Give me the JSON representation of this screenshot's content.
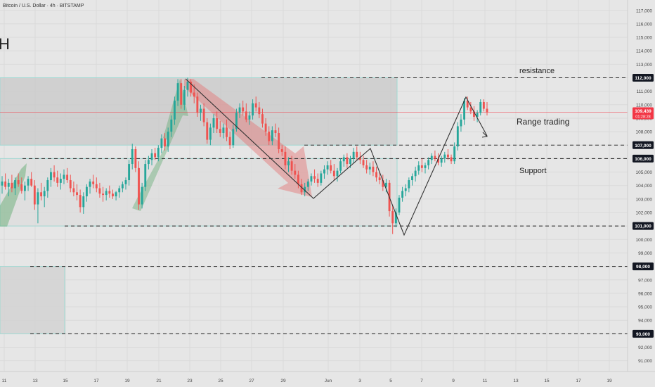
{
  "header": {
    "symbol_line": "Bitcoin / U.S. Dollar · 4h · BITSTAMP",
    "partial_title": "H"
  },
  "chart_data": {
    "type": "candlestick",
    "symbol": "Bitcoin / U.S. Dollar",
    "interval": "4h",
    "exchange": "BITSTAMP",
    "y_axis": {
      "min": 90500,
      "max": 117500,
      "ticks": [
        117000,
        116000,
        115000,
        114000,
        113000,
        112000,
        111000,
        110000,
        109000,
        108000,
        107000,
        106000,
        105000,
        104000,
        103000,
        102000,
        101000,
        100000,
        99000,
        98000,
        97000,
        96000,
        95000,
        94000,
        93000,
        92000,
        91000
      ],
      "tick_labels": [
        "117,000",
        "116,000",
        "115,000",
        "114,000",
        "113,000",
        "112,000",
        "111,000",
        "110,000",
        "109,000",
        "108,000",
        "107,000",
        "106,000",
        "105,000",
        "104,000",
        "103,000",
        "102,000",
        "101,000",
        "100,000",
        "99,000",
        "98,000",
        "97,000",
        "96,000",
        "95,000",
        "94,000",
        "93,000",
        "92,000",
        "91,000"
      ]
    },
    "x_axis": {
      "labels": [
        "11",
        "13",
        "15",
        "17",
        "19",
        "21",
        "23",
        "25",
        "27",
        "29",
        "Jun",
        "3",
        "5",
        "7",
        "9",
        "11",
        "13",
        "15",
        "17",
        "19"
      ]
    },
    "current_price": {
      "label": "109,439",
      "timer": "01:28:28",
      "value": 109439
    },
    "key_levels": [
      {
        "value": 112000,
        "label": "112,000"
      },
      {
        "value": 107000,
        "label": "107,000"
      },
      {
        "value": 106000,
        "label": "106,000"
      },
      {
        "value": 101000,
        "label": "101,000"
      },
      {
        "value": 98000,
        "label": "98,000"
      },
      {
        "value": 93000,
        "label": "93,000"
      }
    ],
    "annotations": [
      {
        "text": "resistance"
      },
      {
        "text": "Range trading"
      },
      {
        "text": "Support"
      }
    ],
    "colors": {
      "up": "#26a69a",
      "down": "#ef5350",
      "price_line": "#f23645",
      "zone_border": "#9fd9d3",
      "arrow_up": "#5aa86b",
      "arrow_down": "#e57373"
    },
    "candles": [
      [
        104000,
        104700,
        103400,
        104300
      ],
      [
        104300,
        104900,
        103700,
        103900
      ],
      [
        103900,
        104500,
        103200,
        104200
      ],
      [
        104200,
        104800,
        103500,
        103800
      ],
      [
        103800,
        104600,
        103300,
        104400
      ],
      [
        104400,
        104900,
        103900,
        104100
      ],
      [
        104100,
        104600,
        103400,
        103600
      ],
      [
        103600,
        104300,
        102900,
        104000
      ],
      [
        104000,
        104700,
        103600,
        104500
      ],
      [
        104500,
        105000,
        103900,
        104000
      ],
      [
        104000,
        104400,
        102200,
        102600
      ],
      [
        102600,
        103800,
        101200,
        103500
      ],
      [
        103500,
        104200,
        102900,
        103200
      ],
      [
        103200,
        103900,
        102400,
        103600
      ],
      [
        103600,
        104600,
        103100,
        104400
      ],
      [
        104400,
        105300,
        103900,
        105000
      ],
      [
        105000,
        105500,
        104300,
        104600
      ],
      [
        104600,
        105100,
        103900,
        104200
      ],
      [
        104200,
        104900,
        103700,
        104500
      ],
      [
        104500,
        105200,
        104100,
        104800
      ],
      [
        104800,
        105300,
        104200,
        104400
      ],
      [
        104400,
        104800,
        103500,
        103800
      ],
      [
        103800,
        104300,
        103200,
        103500
      ],
      [
        103500,
        104100,
        102900,
        103300
      ],
      [
        103300,
        103700,
        102000,
        102400
      ],
      [
        102400,
        103500,
        101900,
        103200
      ],
      [
        103200,
        104100,
        102800,
        103900
      ],
      [
        103900,
        104500,
        103400,
        104300
      ],
      [
        104300,
        104800,
        103800,
        104100
      ],
      [
        104100,
        104600,
        103500,
        103800
      ],
      [
        103800,
        104200,
        103100,
        103400
      ],
      [
        103400,
        103900,
        102800,
        103300
      ],
      [
        103300,
        103800,
        102900,
        103600
      ],
      [
        103600,
        104000,
        103100,
        103400
      ],
      [
        103400,
        103700,
        103000,
        103200
      ],
      [
        103200,
        103600,
        102900,
        103500
      ],
      [
        103500,
        104000,
        103100,
        103800
      ],
      [
        103800,
        104300,
        103500,
        104100
      ],
      [
        104100,
        104600,
        103700,
        104400
      ],
      [
        104400,
        105900,
        104000,
        105600
      ],
      [
        105600,
        107100,
        105200,
        106700
      ],
      [
        106700,
        106900,
        105000,
        105300
      ],
      [
        105300,
        105800,
        102200,
        102600
      ],
      [
        102600,
        104200,
        102300,
        103900
      ],
      [
        103900,
        105900,
        103600,
        105600
      ],
      [
        105600,
        106200,
        105200,
        105900
      ],
      [
        105900,
        106700,
        105500,
        106400
      ],
      [
        106400,
        106800,
        105900,
        106100
      ],
      [
        106100,
        107000,
        105800,
        106800
      ],
      [
        106800,
        107800,
        106400,
        107500
      ],
      [
        107500,
        107900,
        106600,
        106900
      ],
      [
        106900,
        108300,
        106500,
        108000
      ],
      [
        108000,
        109200,
        107600,
        108900
      ],
      [
        108900,
        110600,
        108500,
        110300
      ],
      [
        110300,
        111900,
        109900,
        111600
      ],
      [
        111600,
        111900,
        109700,
        110000
      ],
      [
        110000,
        111400,
        109600,
        111100
      ],
      [
        111100,
        112000,
        110600,
        111700
      ],
      [
        111700,
        111900,
        110600,
        110900
      ],
      [
        110900,
        111500,
        110100,
        110600
      ],
      [
        110600,
        110900,
        109100,
        109400
      ],
      [
        109400,
        110000,
        108800,
        109700
      ],
      [
        109700,
        110100,
        108400,
        108700
      ],
      [
        108700,
        109000,
        107100,
        107400
      ],
      [
        107400,
        108600,
        107000,
        108300
      ],
      [
        108300,
        109300,
        107900,
        109000
      ],
      [
        109000,
        109500,
        107900,
        108200
      ],
      [
        108200,
        108800,
        107600,
        107900
      ],
      [
        107900,
        108600,
        107500,
        108300
      ],
      [
        108300,
        108900,
        107300,
        107600
      ],
      [
        107600,
        108000,
        106700,
        107000
      ],
      [
        107000,
        108500,
        106800,
        108200
      ],
      [
        108200,
        109700,
        108000,
        109400
      ],
      [
        109400,
        110100,
        109000,
        109800
      ],
      [
        109800,
        110300,
        109200,
        109500
      ],
      [
        109500,
        110100,
        108700,
        108900
      ],
      [
        108900,
        109500,
        108500,
        109200
      ],
      [
        109200,
        110400,
        108900,
        110100
      ],
      [
        110100,
        110600,
        109500,
        109800
      ],
      [
        109800,
        110200,
        109000,
        109300
      ],
      [
        109300,
        109700,
        108300,
        108600
      ],
      [
        108600,
        109000,
        107700,
        108000
      ],
      [
        108000,
        108400,
        107000,
        107300
      ],
      [
        107300,
        108400,
        107000,
        108100
      ],
      [
        108100,
        108600,
        107600,
        107900
      ],
      [
        107900,
        108300,
        106400,
        106700
      ],
      [
        106700,
        107000,
        106200,
        106500
      ],
      [
        106500,
        106900,
        105200,
        105500
      ],
      [
        105500,
        106100,
        105000,
        105800
      ],
      [
        105800,
        106200,
        104800,
        105100
      ],
      [
        105100,
        105600,
        104500,
        104800
      ],
      [
        104800,
        105100,
        103800,
        104100
      ],
      [
        104100,
        104500,
        103300,
        103500
      ],
      [
        103500,
        104200,
        103200,
        103900
      ],
      [
        103900,
        104500,
        103600,
        104300
      ],
      [
        104300,
        104900,
        104000,
        104700
      ],
      [
        104700,
        105200,
        104200,
        104500
      ],
      [
        104500,
        104900,
        103900,
        104200
      ],
      [
        104200,
        105100,
        104000,
        104900
      ],
      [
        104900,
        105500,
        104500,
        105200
      ],
      [
        105200,
        105800,
        104800,
        105500
      ],
      [
        105500,
        105900,
        104900,
        105100
      ],
      [
        105100,
        105600,
        104400,
        104700
      ],
      [
        104700,
        105300,
        104300,
        105100
      ],
      [
        105100,
        106000,
        104900,
        105800
      ],
      [
        105800,
        106300,
        105400,
        106100
      ],
      [
        106100,
        106400,
        105300,
        105600
      ],
      [
        105600,
        106200,
        105300,
        106000
      ],
      [
        106000,
        106800,
        105700,
        106500
      ],
      [
        106500,
        106900,
        105900,
        106100
      ],
      [
        106100,
        106500,
        105600,
        105900
      ],
      [
        105900,
        106200,
        105300,
        105500
      ],
      [
        105500,
        105900,
        104900,
        105200
      ],
      [
        105200,
        105700,
        104800,
        105400
      ],
      [
        105400,
        105800,
        104700,
        105000
      ],
      [
        105000,
        105400,
        104300,
        104600
      ],
      [
        104600,
        105000,
        104100,
        104400
      ],
      [
        104400,
        104800,
        103600,
        103900
      ],
      [
        103900,
        104500,
        103500,
        104200
      ],
      [
        104200,
        104400,
        101700,
        102100
      ],
      [
        102100,
        102500,
        100400,
        101200
      ],
      [
        101200,
        102300,
        100900,
        102000
      ],
      [
        102000,
        103300,
        101800,
        103100
      ],
      [
        103100,
        103900,
        102800,
        103600
      ],
      [
        103600,
        104100,
        103200,
        103800
      ],
      [
        103800,
        104600,
        103500,
        104400
      ],
      [
        104400,
        104900,
        104000,
        104700
      ],
      [
        104700,
        105400,
        104300,
        105100
      ],
      [
        105100,
        105800,
        104800,
        105500
      ],
      [
        105500,
        106000,
        105000,
        105300
      ],
      [
        105300,
        105700,
        104900,
        105500
      ],
      [
        105500,
        106100,
        105200,
        105900
      ],
      [
        105900,
        106400,
        105600,
        106200
      ],
      [
        106200,
        106600,
        105800,
        106000
      ],
      [
        106000,
        106400,
        105500,
        105700
      ],
      [
        105700,
        106200,
        105400,
        106000
      ],
      [
        106000,
        106500,
        105700,
        106300
      ],
      [
        106300,
        106700,
        105900,
        106100
      ],
      [
        106100,
        106300,
        105600,
        105800
      ],
      [
        105800,
        107200,
        105600,
        106900
      ],
      [
        106900,
        108700,
        106600,
        108400
      ],
      [
        108400,
        109300,
        108000,
        108900
      ],
      [
        108900,
        110500,
        108500,
        110300
      ],
      [
        110300,
        110600,
        109600,
        109800
      ],
      [
        109800,
        110200,
        109300,
        109500
      ],
      [
        109500,
        109900,
        108800,
        109100
      ],
      [
        109100,
        109600,
        108700,
        109400
      ],
      [
        109400,
        110400,
        109200,
        110200
      ],
      [
        110200,
        110400,
        109500,
        109700
      ],
      [
        109700,
        110200,
        109200,
        109439
      ]
    ]
  }
}
